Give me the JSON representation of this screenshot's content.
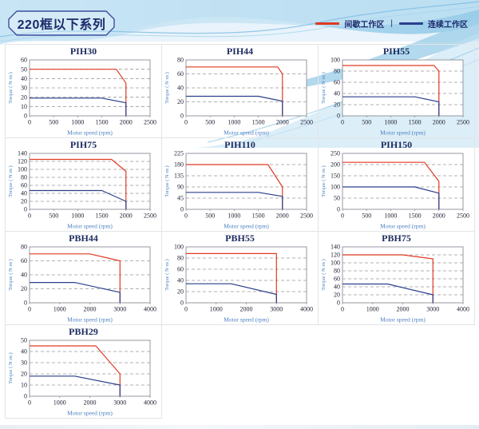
{
  "page": {
    "title": "220框以下系列",
    "legend": {
      "intermittent_label": "间歇工作区",
      "separator": "|",
      "continuous_label": "连续工作区",
      "intermittent_color": "#e03a23",
      "continuous_color": "#2b3f8c"
    }
  },
  "axis_labels": {
    "xlabel": "Motor speed (rpm)",
    "ylabel": "Torque ( N·m )"
  },
  "colors": {
    "tick_text": "#26263a",
    "axis_label_text": "#4a7fc1",
    "plot_border": "#8a8f98",
    "gridline": "#999999",
    "chart_title": "#1c2b5e"
  },
  "chart_data": [
    {
      "type": "line",
      "title": "PIH30",
      "xlabel": "Motor speed (rpm)",
      "ylabel": "Torque ( N·m )",
      "xlim": [
        0,
        2500
      ],
      "xstep": 500,
      "ylim": [
        0,
        60
      ],
      "ystep": 10,
      "grid": "dashed-horizontal",
      "series": [
        {
          "name": "间歇工作区",
          "color": "#e03a23",
          "points": [
            [
              0,
              50
            ],
            [
              1800,
              50
            ],
            [
              2000,
              35
            ],
            [
              2000,
              0
            ]
          ]
        },
        {
          "name": "连续工作区",
          "color": "#2b3f8c",
          "points": [
            [
              0,
              19
            ],
            [
              1500,
              19
            ],
            [
              2000,
              14
            ],
            [
              2000,
              0
            ]
          ]
        }
      ]
    },
    {
      "type": "line",
      "title": "PIH44",
      "xlabel": "Motor speed (rpm)",
      "ylabel": "Torque ( N·m )",
      "xlim": [
        0,
        2500
      ],
      "xstep": 500,
      "ylim": [
        0,
        80
      ],
      "ystep": 20,
      "grid": "dashed-horizontal",
      "series": [
        {
          "name": "间歇工作区",
          "color": "#e03a23",
          "points": [
            [
              0,
              70
            ],
            [
              1900,
              70
            ],
            [
              2000,
              60
            ],
            [
              2000,
              0
            ]
          ]
        },
        {
          "name": "连续工作区",
          "color": "#2b3f8c",
          "points": [
            [
              0,
              28
            ],
            [
              1500,
              28
            ],
            [
              2000,
              21
            ],
            [
              2000,
              0
            ]
          ]
        }
      ]
    },
    {
      "type": "line",
      "title": "PIH55",
      "xlabel": "Motor speed (rpm)",
      "ylabel": "Torque ( N·m )",
      "xlim": [
        0,
        2500
      ],
      "xstep": 500,
      "ylim": [
        0,
        100
      ],
      "ystep": 20,
      "grid": "dashed-horizontal",
      "series": [
        {
          "name": "间歇工作区",
          "color": "#e03a23",
          "points": [
            [
              0,
              90
            ],
            [
              1900,
              90
            ],
            [
              2000,
              80
            ],
            [
              2000,
              0
            ]
          ]
        },
        {
          "name": "连续工作区",
          "color": "#2b3f8c",
          "points": [
            [
              0,
              34
            ],
            [
              1500,
              34
            ],
            [
              2000,
              25
            ],
            [
              2000,
              0
            ]
          ]
        }
      ]
    },
    {
      "type": "line",
      "title": "PIH75",
      "xlabel": "Motor speed (rpm)",
      "ylabel": "Torque ( N·m )",
      "xlim": [
        0,
        2500
      ],
      "xstep": 500,
      "ylim": [
        0,
        140
      ],
      "ystep": 20,
      "grid": "dashed-horizontal",
      "series": [
        {
          "name": "间歇工作区",
          "color": "#e03a23",
          "points": [
            [
              0,
              125
            ],
            [
              1700,
              125
            ],
            [
              2000,
              95
            ],
            [
              2000,
              0
            ]
          ]
        },
        {
          "name": "连续工作区",
          "color": "#2b3f8c",
          "points": [
            [
              0,
              47
            ],
            [
              1500,
              47
            ],
            [
              2000,
              20
            ],
            [
              2000,
              0
            ]
          ]
        }
      ]
    },
    {
      "type": "line",
      "title": "PIH110",
      "xlabel": "Motor speed (rpm)",
      "ylabel": "Torque ( N·m )",
      "xlim": [
        0,
        2500
      ],
      "xstep": 500,
      "ylim": [
        0,
        225
      ],
      "ystep": 45,
      "grid": "dashed-horizontal",
      "series": [
        {
          "name": "间歇工作区",
          "color": "#e03a23",
          "points": [
            [
              0,
              180
            ],
            [
              1700,
              180
            ],
            [
              2000,
              90
            ],
            [
              2000,
              0
            ]
          ]
        },
        {
          "name": "连续工作区",
          "color": "#2b3f8c",
          "points": [
            [
              0,
              68
            ],
            [
              1500,
              68
            ],
            [
              2000,
              52
            ],
            [
              2000,
              0
            ]
          ]
        }
      ]
    },
    {
      "type": "line",
      "title": "PIH150",
      "xlabel": "Motor speed (rpm)",
      "ylabel": "Torque ( N·m )",
      "xlim": [
        0,
        2500
      ],
      "xstep": 500,
      "ylim": [
        0,
        250
      ],
      "ystep": 50,
      "grid": "dashed-horizontal",
      "series": [
        {
          "name": "间歇工作区",
          "color": "#e03a23",
          "points": [
            [
              0,
              210
            ],
            [
              1700,
              210
            ],
            [
              2000,
              125
            ],
            [
              2000,
              0
            ]
          ]
        },
        {
          "name": "连续工作区",
          "color": "#2b3f8c",
          "points": [
            [
              0,
              100
            ],
            [
              1500,
              100
            ],
            [
              2000,
              72
            ],
            [
              2000,
              0
            ]
          ]
        }
      ]
    },
    {
      "type": "line",
      "title": "PBH44",
      "xlabel": "Motor speed (rpm)",
      "ylabel": "Torque ( N·m )",
      "xlim": [
        0,
        4000
      ],
      "xstep": 1000,
      "ylim": [
        0,
        80
      ],
      "ystep": 20,
      "grid": "dashed-horizontal",
      "series": [
        {
          "name": "间歇工作区",
          "color": "#e03a23",
          "points": [
            [
              0,
              70
            ],
            [
              2000,
              70
            ],
            [
              3000,
              60
            ],
            [
              3000,
              0
            ]
          ]
        },
        {
          "name": "连续工作区",
          "color": "#2b3f8c",
          "points": [
            [
              0,
              29
            ],
            [
              1500,
              29
            ],
            [
              3000,
              15
            ],
            [
              3000,
              0
            ]
          ]
        }
      ]
    },
    {
      "type": "line",
      "title": "PBH55",
      "xlabel": "Motor speed (rpm)",
      "ylabel": "Torque ( N·m )",
      "xlim": [
        0,
        4000
      ],
      "xstep": 1000,
      "ylim": [
        0,
        100
      ],
      "ystep": 20,
      "grid": "dashed-horizontal",
      "series": [
        {
          "name": "间歇工作区",
          "color": "#e03a23",
          "points": [
            [
              0,
              88
            ],
            [
              3000,
              88
            ],
            [
              3000,
              0
            ]
          ]
        },
        {
          "name": "连续工作区",
          "color": "#2b3f8c",
          "points": [
            [
              0,
              34
            ],
            [
              1500,
              34
            ],
            [
              3000,
              15
            ],
            [
              3000,
              0
            ]
          ]
        }
      ]
    },
    {
      "type": "line",
      "title": "PBH75",
      "xlabel": "Motor speed (rpm)",
      "ylabel": "Torque ( N·m )",
      "xlim": [
        0,
        4000
      ],
      "xstep": 1000,
      "ylim": [
        0,
        140
      ],
      "ystep": 20,
      "grid": "dashed-horizontal",
      "series": [
        {
          "name": "间歇工作区",
          "color": "#e03a23",
          "points": [
            [
              0,
              120
            ],
            [
              2000,
              120
            ],
            [
              3000,
              110
            ],
            [
              3000,
              0
            ]
          ]
        },
        {
          "name": "连续工作区",
          "color": "#2b3f8c",
          "points": [
            [
              0,
              47
            ],
            [
              1500,
              47
            ],
            [
              3000,
              20
            ],
            [
              3000,
              0
            ]
          ]
        }
      ]
    },
    {
      "type": "line",
      "title": "PBH29",
      "xlabel": "Motor speed (rpm)",
      "ylabel": "Torque ( N·m )",
      "xlim": [
        0,
        4000
      ],
      "xstep": 1000,
      "ylim": [
        0,
        50
      ],
      "ystep": 10,
      "grid": "dashed-horizontal",
      "series": [
        {
          "name": "间歇工作区",
          "color": "#e03a23",
          "points": [
            [
              0,
              45
            ],
            [
              2200,
              45
            ],
            [
              3000,
              20
            ],
            [
              3000,
              0
            ]
          ]
        },
        {
          "name": "连续工作区",
          "color": "#2b3f8c",
          "points": [
            [
              0,
              18
            ],
            [
              1500,
              18
            ],
            [
              3000,
              10
            ],
            [
              3000,
              0
            ]
          ]
        }
      ]
    }
  ]
}
